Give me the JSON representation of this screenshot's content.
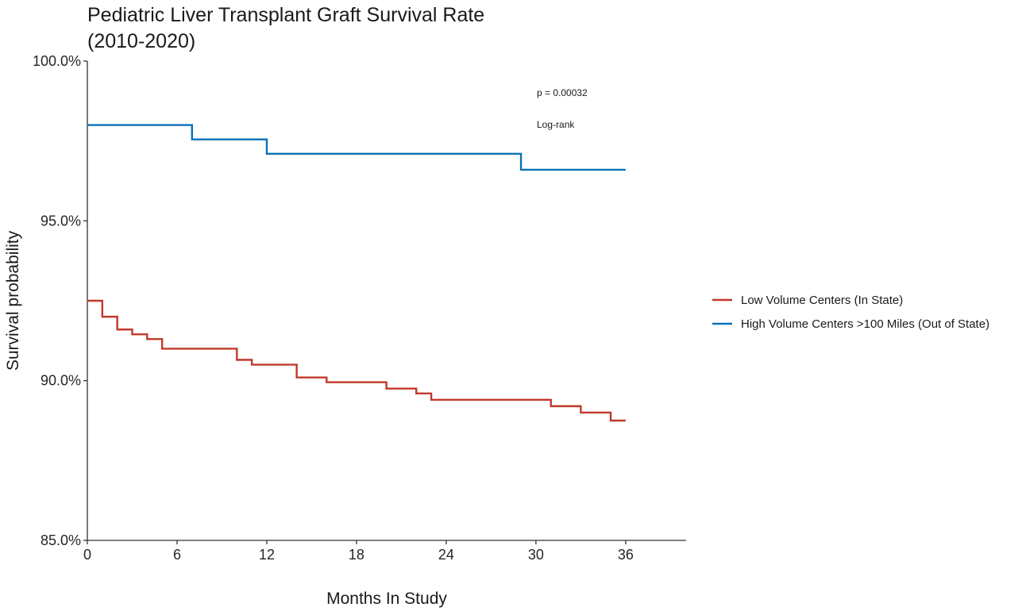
{
  "chart_data": {
    "type": "line",
    "title": "Pediatric Liver Transplant Graft Survival Rate",
    "subtitle": "(2010-2020)",
    "xlabel": "Months In Study",
    "ylabel": "Survival probability",
    "xlim": [
      0,
      40
    ],
    "ylim": [
      85.0,
      100.0
    ],
    "x_ticks": [
      0,
      6,
      12,
      18,
      24,
      30,
      36
    ],
    "x_tick_labels": [
      "0",
      "6",
      "12",
      "18",
      "24",
      "30",
      "36"
    ],
    "y_ticks": [
      85.0,
      90.0,
      95.0,
      100.0
    ],
    "y_tick_labels": [
      "85.0%",
      "90.0%",
      "95.0%",
      "100.0%"
    ],
    "grid": false,
    "legend_position": "right",
    "step": true,
    "series": [
      {
        "name": "Low Volume Centers (In State)",
        "color": "#c0392b",
        "points": [
          [
            0,
            92.5
          ],
          [
            1,
            92.0
          ],
          [
            2,
            91.6
          ],
          [
            3,
            91.45
          ],
          [
            4,
            91.3
          ],
          [
            5,
            91.0
          ],
          [
            10,
            90.65
          ],
          [
            11,
            90.5
          ],
          [
            14,
            90.1
          ],
          [
            16,
            89.95
          ],
          [
            20,
            89.75
          ],
          [
            22,
            89.6
          ],
          [
            23,
            89.4
          ],
          [
            31,
            89.2
          ],
          [
            33,
            89.0
          ],
          [
            35,
            88.75
          ],
          [
            36,
            88.75
          ]
        ]
      },
      {
        "name": "High Volume Centers >100 Miles (Out of State)",
        "color": "#0a72b8",
        "points": [
          [
            0,
            98.0
          ],
          [
            7,
            97.55
          ],
          [
            12,
            97.1
          ],
          [
            29,
            96.6
          ],
          [
            36,
            96.6
          ]
        ]
      }
    ],
    "annotations": {
      "pvalue": "p = 0.00032",
      "test": "Log-rank"
    }
  }
}
